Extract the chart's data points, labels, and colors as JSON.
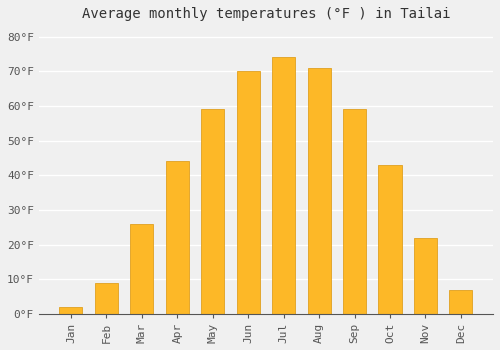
{
  "title": "Average monthly temperatures (°F ) in Tailai",
  "months": [
    "Jan",
    "Feb",
    "Mar",
    "Apr",
    "May",
    "Jun",
    "Jul",
    "Aug",
    "Sep",
    "Oct",
    "Nov",
    "Dec"
  ],
  "values": [
    2,
    9,
    26,
    44,
    59,
    70,
    74,
    71,
    59,
    43,
    22,
    7
  ],
  "bar_color": "#FDB827",
  "bar_edge_color": "#E0A020",
  "background_color": "#F0F0F0",
  "grid_color": "#FFFFFF",
  "yticks": [
    0,
    10,
    20,
    30,
    40,
    50,
    60,
    70,
    80
  ],
  "ylim": [
    0,
    83
  ],
  "title_fontsize": 10,
  "tick_fontsize": 8,
  "font_family": "monospace",
  "bar_width": 0.65
}
